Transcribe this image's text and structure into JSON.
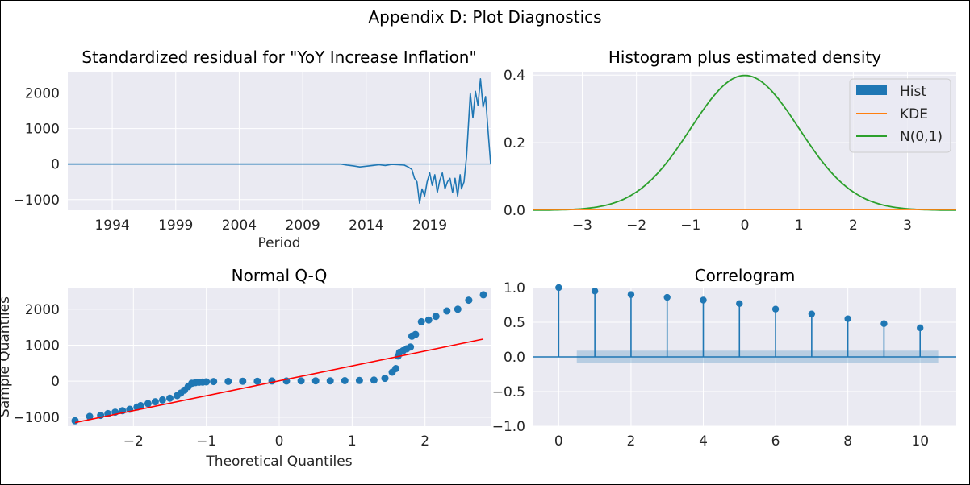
{
  "figure_title": "Appendix D: Plot Diagnostics",
  "colors": {
    "blue": "#1f77b4",
    "orange": "#ff7f0e",
    "green": "#2ca02c",
    "red": "#ff0000",
    "axes_bg": "#eaeaf2"
  },
  "chart_data": [
    {
      "type": "line",
      "title": "Standardized residual for \"YoY Increase Inflation\"",
      "xlabel": "Period",
      "ylabel": "",
      "xlim": [
        1990.5,
        2023.8
      ],
      "ylim": [
        -1300,
        2600
      ],
      "xticks": [
        1994,
        1999,
        2004,
        2009,
        2014,
        2019
      ],
      "xtick_labels": [
        "1994",
        "1999",
        "2004",
        "2009",
        "2014",
        "2019"
      ],
      "yticks": [
        -1000,
        0,
        1000,
        2000
      ],
      "ytick_labels": [
        "−1000",
        "0",
        "1000",
        "2000"
      ],
      "hline": 0,
      "series": [
        {
          "x": [
            1990.5,
            2000,
            2010,
            2012,
            2012.5,
            2013,
            2013.5,
            2014,
            2014.5,
            2015,
            2015.5,
            2016,
            2016.5,
            2017,
            2017.3,
            2017.6,
            2017.8,
            2018,
            2018.2,
            2018.4,
            2018.6,
            2018.8,
            2019,
            2019.2,
            2019.4,
            2019.6,
            2019.8,
            2020,
            2020.2,
            2020.4,
            2020.6,
            2020.8,
            2021,
            2021.2,
            2021.4,
            2021.5,
            2021.7,
            2021.9,
            2022,
            2022.2,
            2022.4,
            2022.6,
            2022.8,
            2023,
            2023.2,
            2023.4,
            2023.6,
            2023.8
          ],
          "y": [
            0,
            0,
            0,
            0,
            -30,
            -50,
            -80,
            -60,
            -40,
            -20,
            -40,
            -10,
            -20,
            -30,
            -80,
            -150,
            -400,
            -500,
            -1100,
            -700,
            -900,
            -500,
            -250,
            -600,
            -300,
            -800,
            -450,
            -250,
            -700,
            -500,
            -400,
            -800,
            -400,
            -900,
            -300,
            -700,
            -500,
            200,
            800,
            2000,
            1300,
            2050,
            1650,
            2400,
            1600,
            1900,
            900,
            0
          ]
        }
      ]
    },
    {
      "type": "line",
      "title": "Histogram plus estimated density",
      "xlim": [
        -3.9,
        3.9
      ],
      "ylim": [
        0,
        0.41
      ],
      "xticks": [
        -3,
        -2,
        -1,
        0,
        1,
        2,
        3
      ],
      "xtick_labels": [
        "−3",
        "−2",
        "−1",
        "0",
        "1",
        "2",
        "3"
      ],
      "yticks": [
        0.0,
        0.2,
        0.4
      ],
      "ytick_labels": [
        "0.0",
        "0.2",
        "0.4"
      ],
      "legend": [
        "Hist",
        "KDE",
        "N(0,1)"
      ],
      "legend_position": "top-right",
      "kde": {
        "x": [
          -3.9,
          3.9
        ],
        "y": [
          0,
          0
        ]
      },
      "normal": {
        "distribution": "N(0,1)",
        "x_range": [
          -3.9,
          3.9
        ]
      }
    },
    {
      "type": "scatter",
      "title": "Normal Q-Q",
      "xlabel": "Theoretical Quantiles",
      "ylabel": "Sample Quantiles",
      "xlim": [
        -2.9,
        2.9
      ],
      "ylim": [
        -1250,
        2600
      ],
      "xticks": [
        -2,
        -1,
        0,
        1,
        2
      ],
      "xtick_labels": [
        "−2",
        "−1",
        "0",
        "1",
        "2"
      ],
      "yticks": [
        -1000,
        0,
        1000,
        2000
      ],
      "ytick_labels": [
        "−1000",
        "0",
        "1000",
        "2000"
      ],
      "points": {
        "x": [
          -2.8,
          -2.6,
          -2.45,
          -2.35,
          -2.25,
          -2.15,
          -2.05,
          -1.95,
          -1.9,
          -1.8,
          -1.7,
          -1.6,
          -1.5,
          -1.4,
          -1.35,
          -1.3,
          -1.25,
          -1.2,
          -1.15,
          -1.1,
          -1.05,
          -1.0,
          -0.9,
          -0.7,
          -0.5,
          -0.3,
          -0.1,
          0.1,
          0.3,
          0.5,
          0.7,
          0.9,
          1.1,
          1.3,
          1.45,
          1.55,
          1.6,
          1.63,
          1.65,
          1.7,
          1.75,
          1.8,
          1.82,
          1.87,
          1.95,
          2.05,
          2.15,
          2.3,
          2.45,
          2.6,
          2.8
        ],
        "y": [
          -1100,
          -980,
          -950,
          -900,
          -860,
          -820,
          -780,
          -720,
          -680,
          -620,
          -570,
          -520,
          -470,
          -400,
          -330,
          -250,
          -150,
          -60,
          -40,
          -30,
          -25,
          -20,
          -10,
          -5,
          0,
          0,
          5,
          5,
          10,
          10,
          10,
          15,
          20,
          30,
          80,
          250,
          350,
          700,
          800,
          850,
          900,
          950,
          1250,
          1300,
          1650,
          1700,
          1800,
          1950,
          2000,
          2250,
          2400
        ]
      },
      "reference_line": {
        "x": [
          -2.8,
          2.8
        ],
        "y": [
          -1150,
          1170
        ]
      }
    },
    {
      "type": "bar",
      "title": "Correlogram",
      "xlim": [
        -0.7,
        11.0
      ],
      "ylim": [
        -1.0,
        1.0
      ],
      "xticks": [
        0,
        2,
        4,
        6,
        8,
        10
      ],
      "xtick_labels": [
        "0",
        "2",
        "4",
        "6",
        "8",
        "10"
      ],
      "yticks": [
        -1.0,
        -0.5,
        0.0,
        0.5,
        1.0
      ],
      "ytick_labels": [
        "−1.0",
        "−0.5",
        "0.0",
        "0.5",
        "1.0"
      ],
      "lags": [
        0,
        1,
        2,
        3,
        4,
        5,
        6,
        7,
        8,
        9,
        10
      ],
      "values": [
        1.0,
        0.95,
        0.9,
        0.86,
        0.82,
        0.77,
        0.69,
        0.62,
        0.55,
        0.48,
        0.42
      ],
      "confidence_band": {
        "x": [
          0.5,
          10.5
        ],
        "upper": 0.09,
        "lower": -0.09
      }
    }
  ]
}
